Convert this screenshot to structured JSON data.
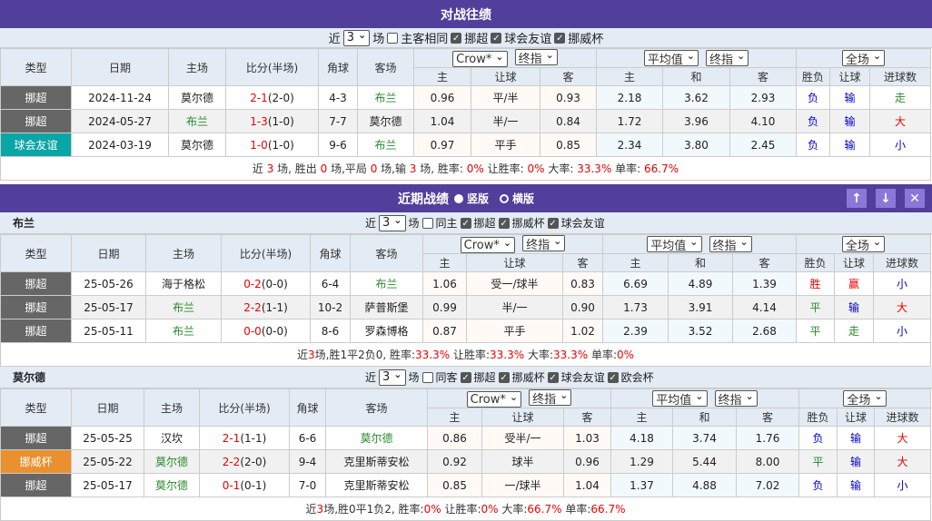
{
  "h2h": {
    "title": "对战往绩",
    "near": "近",
    "count": "3",
    "unit": "场",
    "same_label": "主客相同",
    "filters": [
      "挪超",
      "球会友谊",
      "挪威杯"
    ],
    "headers": [
      "类型",
      "日期",
      "主场",
      "比分(半场)",
      "角球",
      "客场",
      "主",
      "让球",
      "客",
      "主",
      "和",
      "客",
      "胜负",
      "让球",
      "进球数"
    ],
    "selects": [
      "Crow*",
      "终指",
      "平均值",
      "终指",
      "全场"
    ],
    "rows": [
      {
        "type": "挪超",
        "tc": "#666666",
        "date": "2024-11-24",
        "home": "莫尔德",
        "hh": false,
        "ft": "2-1",
        "ht": "(2-0)",
        "corner": "4-3",
        "away": "布兰",
        "ah": true,
        "o": [
          "0.96",
          "平/半",
          "0.93",
          "2.18",
          "3.62",
          "2.93"
        ],
        "res": [
          "负",
          "输",
          "走"
        ]
      },
      {
        "type": "挪超",
        "tc": "#666666",
        "date": "2024-05-27",
        "home": "布兰",
        "hh": true,
        "ft": "1-3",
        "ht": "(1-0)",
        "corner": "7-7",
        "away": "莫尔德",
        "ah": false,
        "o": [
          "1.04",
          "半/一",
          "0.84",
          "1.72",
          "3.96",
          "4.10"
        ],
        "res": [
          "负",
          "输",
          "大"
        ]
      },
      {
        "type": "球会友谊",
        "tc": "#0aa5a5",
        "date": "2024-03-19",
        "home": "莫尔德",
        "hh": false,
        "ft": "1-0",
        "ht": "(1-0)",
        "corner": "9-6",
        "away": "布兰",
        "ah": true,
        "o": [
          "0.97",
          "平手",
          "0.85",
          "2.34",
          "3.80",
          "2.45"
        ],
        "res": [
          "负",
          "输",
          "小"
        ]
      }
    ],
    "summary": [
      {
        "t": "近 "
      },
      {
        "t": "3",
        "r": 1
      },
      {
        "t": " 场, 胜出 "
      },
      {
        "t": "0",
        "r": 1
      },
      {
        "t": " 场,平局 "
      },
      {
        "t": "0",
        "r": 1
      },
      {
        "t": " 场,输 "
      },
      {
        "t": "3",
        "r": 1
      },
      {
        "t": " 场, 胜率: "
      },
      {
        "t": "0%",
        "r": 1
      },
      {
        "t": " 让胜率: "
      },
      {
        "t": "0%",
        "r": 1
      },
      {
        "t": " 大率: "
      },
      {
        "t": "33.3%",
        "r": 1
      },
      {
        "t": " 单率: "
      },
      {
        "t": "66.7%",
        "r": 1
      }
    ]
  },
  "recent": {
    "title": "近期战绩",
    "opt1": "竖版",
    "opt2": "横版",
    "buttons": [
      "↑",
      "↓",
      "✕"
    ]
  },
  "team1": {
    "name": "布兰",
    "near": "近",
    "count": "3",
    "unit": "场",
    "same_label": "同主",
    "filters": [
      "挪超",
      "挪威杯",
      "球会友谊"
    ],
    "headers": [
      "类型",
      "日期",
      "主场",
      "比分(半场)",
      "角球",
      "客场",
      "主",
      "让球",
      "客",
      "主",
      "和",
      "客",
      "胜负",
      "让球",
      "进球数"
    ],
    "selects": [
      "Crow*",
      "终指",
      "平均值",
      "终指",
      "全场"
    ],
    "rows": [
      {
        "type": "挪超",
        "tc": "#666666",
        "date": "25-05-26",
        "home": "海于格松",
        "hh": false,
        "ft": "0-2",
        "ht": "(0-0)",
        "corner": "6-4",
        "away": "布兰",
        "ah": true,
        "o": [
          "1.06",
          "受一/球半",
          "0.83",
          "6.69",
          "4.89",
          "1.39"
        ],
        "res": [
          "胜",
          "赢",
          "小"
        ]
      },
      {
        "type": "挪超",
        "tc": "#666666",
        "date": "25-05-17",
        "home": "布兰",
        "hh": true,
        "ft": "2-2",
        "ht": "(1-1)",
        "corner": "10-2",
        "away": "萨普斯堡",
        "ah": false,
        "o": [
          "0.99",
          "半/一",
          "0.90",
          "1.73",
          "3.91",
          "4.14"
        ],
        "res": [
          "平",
          "输",
          "大"
        ]
      },
      {
        "type": "挪超",
        "tc": "#666666",
        "date": "25-05-11",
        "home": "布兰",
        "hh": true,
        "ft": "0-0",
        "ht": "(0-0)",
        "corner": "8-6",
        "away": "罗森博格",
        "ah": false,
        "o": [
          "0.87",
          "平手",
          "1.02",
          "2.39",
          "3.52",
          "2.68"
        ],
        "res": [
          "平",
          "走",
          "小"
        ]
      }
    ],
    "summary": [
      {
        "t": "近"
      },
      {
        "t": "3",
        "r": 1
      },
      {
        "t": "场,胜1平2负0, 胜率:"
      },
      {
        "t": "33.3%",
        "r": 1
      },
      {
        "t": " 让胜率:"
      },
      {
        "t": "33.3%",
        "r": 1
      },
      {
        "t": " 大率:"
      },
      {
        "t": "33.3%",
        "r": 1
      },
      {
        "t": " 单率:"
      },
      {
        "t": "0%",
        "r": 1
      }
    ]
  },
  "team2": {
    "name": "莫尔德",
    "near": "近",
    "count": "3",
    "unit": "场",
    "same_label": "同客",
    "filters": [
      "挪超",
      "挪威杯",
      "球会友谊",
      "欧会杯"
    ],
    "headers": [
      "类型",
      "日期",
      "主场",
      "比分(半场)",
      "角球",
      "客场",
      "主",
      "让球",
      "客",
      "主",
      "和",
      "客",
      "胜负",
      "让球",
      "进球数"
    ],
    "selects": [
      "Crow*",
      "终指",
      "平均值",
      "终指",
      "全场"
    ],
    "rows": [
      {
        "type": "挪超",
        "tc": "#666666",
        "date": "25-05-25",
        "home": "汉坎",
        "hh": false,
        "ft": "2-1",
        "ht": "(1-1)",
        "corner": "6-6",
        "away": "莫尔德",
        "ah": true,
        "o": [
          "0.86",
          "受半/一",
          "1.03",
          "4.18",
          "3.74",
          "1.76"
        ],
        "res": [
          "负",
          "输",
          "大"
        ]
      },
      {
        "type": "挪威杯",
        "tc": "#e8912e",
        "date": "25-05-22",
        "home": "莫尔德",
        "hh": true,
        "ft": "2-2",
        "ht": "(2-0)",
        "corner": "9-4",
        "away": "克里斯蒂安松",
        "ah": false,
        "o": [
          "0.92",
          "球半",
          "0.96",
          "1.29",
          "5.44",
          "8.00"
        ],
        "res": [
          "平",
          "输",
          "大"
        ]
      },
      {
        "type": "挪超",
        "tc": "#666666",
        "date": "25-05-17",
        "home": "莫尔德",
        "hh": true,
        "ft": "0-1",
        "ht": "(0-1)",
        "corner": "7-0",
        "away": "克里斯蒂安松",
        "ah": false,
        "o": [
          "0.85",
          "一/球半",
          "1.04",
          "1.37",
          "4.88",
          "7.02"
        ],
        "res": [
          "负",
          "输",
          "小"
        ]
      }
    ],
    "summary": [
      {
        "t": "近"
      },
      {
        "t": "3",
        "r": 1
      },
      {
        "t": "场,胜0平1负2, 胜率:"
      },
      {
        "t": "0%",
        "r": 1
      },
      {
        "t": " 让胜率:"
      },
      {
        "t": "0%",
        "r": 1
      },
      {
        "t": " 大率:"
      },
      {
        "t": "66.7%",
        "r": 1
      },
      {
        "t": " 单率:"
      },
      {
        "t": "66.7%",
        "r": 1
      }
    ]
  }
}
